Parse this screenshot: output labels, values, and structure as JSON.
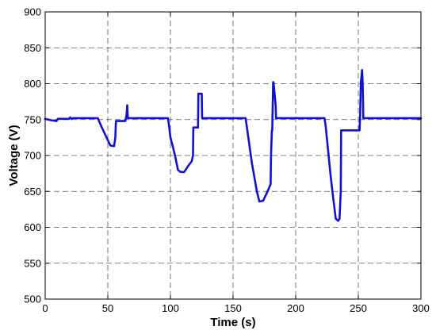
{
  "chart_data": {
    "type": "line",
    "title": "",
    "xlabel": "Time (s)",
    "ylabel": "Voltage (V)",
    "xlim": [
      0,
      300
    ],
    "ylim": [
      500,
      900
    ],
    "xticks": [
      0,
      50,
      100,
      150,
      200,
      250,
      300
    ],
    "yticks": [
      500,
      550,
      600,
      650,
      700,
      750,
      800,
      850,
      900
    ],
    "grid": true,
    "series": [
      {
        "color": "#1010d8",
        "x": [
          0,
          5,
          9,
          10,
          19,
          20,
          21,
          22,
          42,
          45,
          49,
          52,
          55,
          56,
          56.5,
          57,
          60,
          64,
          65,
          65.5,
          66,
          66.5,
          67,
          98,
          99,
          100,
          102,
          104,
          106,
          108,
          111,
          114,
          117,
          118,
          118.3,
          122,
          122.3,
          125,
          125.3,
          128,
          160,
          161,
          163,
          165,
          167,
          169,
          171,
          174,
          177,
          180,
          180.3,
          181,
          181.3,
          182,
          182.3,
          184,
          184.3,
          186,
          223,
          224,
          226,
          228,
          230,
          232,
          234,
          235,
          236,
          236.3,
          250,
          251,
          251.5,
          252,
          253,
          253.5,
          254,
          255,
          257,
          300
        ],
        "y": [
          751,
          749,
          748,
          751,
          751,
          753,
          751,
          752,
          752,
          740,
          725,
          714,
          713,
          725,
          748,
          748,
          748,
          748,
          757,
          770,
          752,
          752,
          752,
          752,
          740,
          725,
          712,
          697,
          680,
          677,
          677,
          685,
          692,
          700,
          739,
          739,
          786,
          786,
          752,
          752,
          752,
          740,
          715,
          690,
          670,
          650,
          636,
          637,
          648,
          660,
          700,
          735,
          735,
          802,
          802,
          770,
          752,
          752,
          752,
          740,
          705,
          670,
          640,
          612,
          609,
          612,
          650,
          735,
          735,
          735,
          760,
          800,
          819,
          800,
          752,
          752,
          752,
          752
        ]
      }
    ]
  }
}
